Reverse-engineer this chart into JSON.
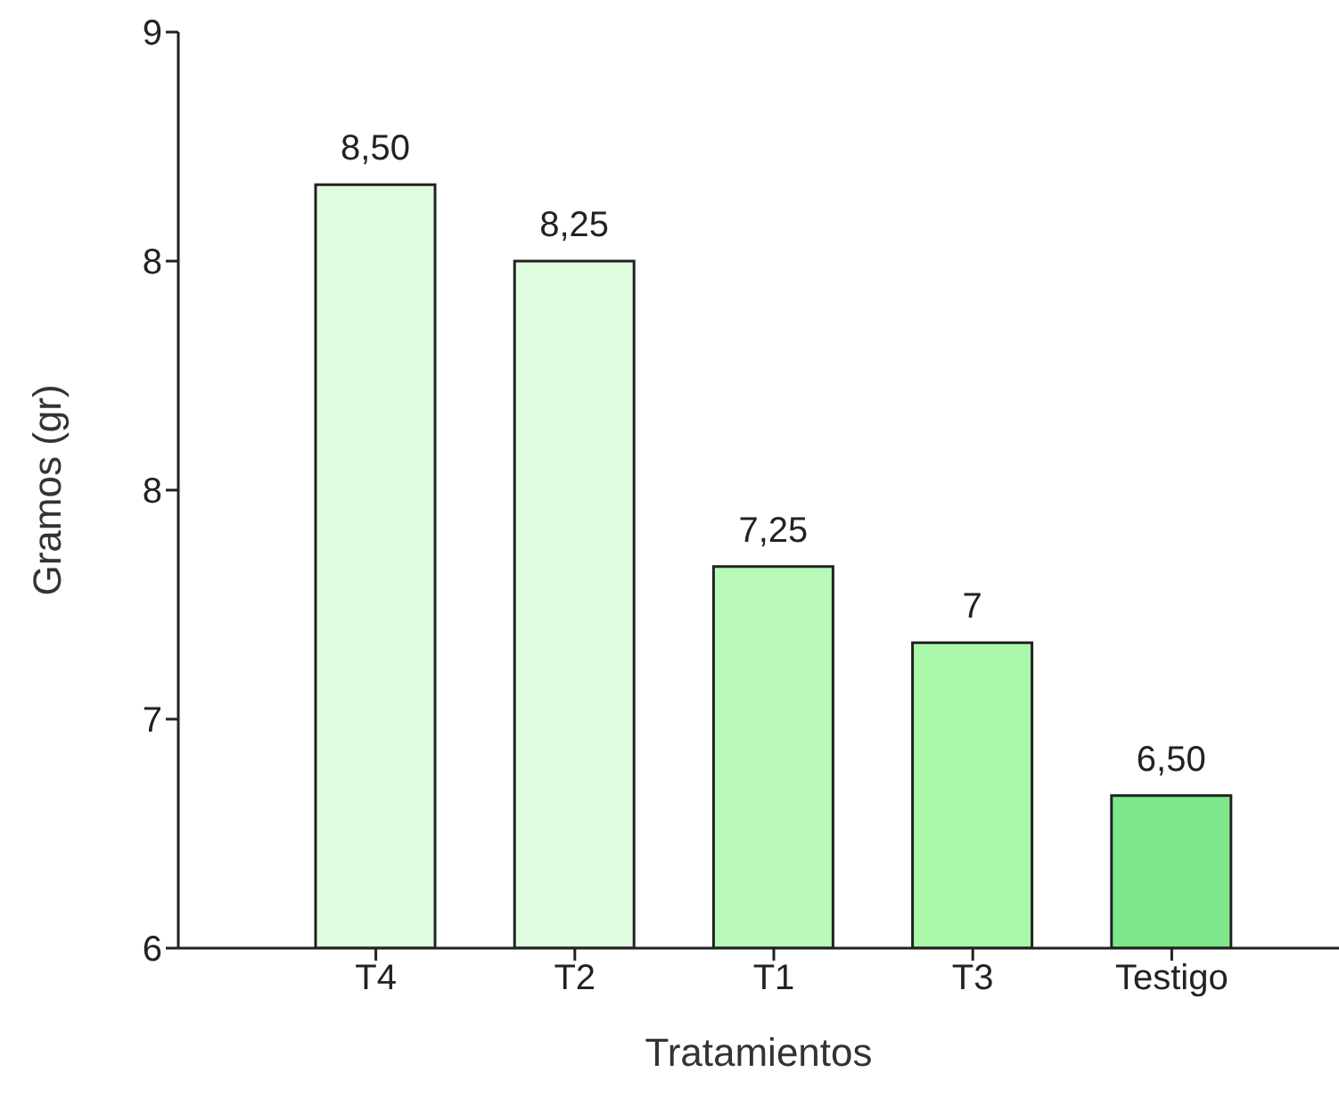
{
  "chart_data": {
    "type": "bar",
    "xlabel": "Tratamientos",
    "ylabel": "Gramos (gr)",
    "categories": [
      "T4",
      "T2",
      "T1",
      "T3",
      "Testigo"
    ],
    "values": [
      8.5,
      8.25,
      7.25,
      7,
      6.5
    ],
    "value_labels": [
      "8,50",
      "8,25",
      "7,25",
      "7",
      "6,50"
    ],
    "colors": [
      "#e0fde0",
      "#e0fde0",
      "#b8f8b8",
      "#aaf8aa",
      "#7de88a"
    ],
    "ylim": [
      6,
      9
    ],
    "yticks": [
      6,
      {
        "value": 6.75,
        "label": "7"
      },
      {
        "value": 7.5,
        "label": "8"
      },
      {
        "value": 8.25,
        "label": "8"
      },
      9
    ],
    "grid": false,
    "legend": false
  }
}
